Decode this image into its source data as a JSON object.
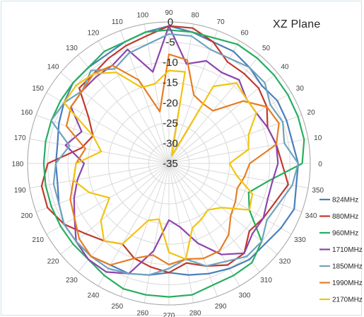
{
  "chart_data": {
    "type": "polar-line",
    "title": "XZ Plane",
    "angle_unit": "degrees",
    "angles": [
      0,
      10,
      20,
      30,
      40,
      50,
      60,
      70,
      80,
      90,
      100,
      110,
      120,
      130,
      140,
      150,
      160,
      170,
      180,
      190,
      200,
      210,
      220,
      230,
      240,
      250,
      260,
      270,
      280,
      290,
      300,
      310,
      320,
      330,
      340,
      350
    ],
    "angle_tick_labels": [
      "0",
      "10",
      "20",
      "30",
      "40",
      "50",
      "60",
      "70",
      "80",
      "90",
      "100",
      "110",
      "120",
      "130",
      "140",
      "150",
      "160",
      "170",
      "180",
      "190",
      "200",
      "210",
      "220",
      "230",
      "240",
      "250",
      "260",
      "270",
      "280",
      "290",
      "300",
      "310",
      "320",
      "330",
      "340",
      "350"
    ],
    "radial_range": [
      -35,
      0
    ],
    "radial_tick_labels": [
      "-35",
      "-30",
      "-25",
      "-20",
      "-15",
      "-10",
      "-5",
      "0"
    ],
    "grid": true,
    "legend_position": "right",
    "series": [
      {
        "name": "824MHz",
        "color": "#4a7ebb",
        "values": [
          -3,
          -4,
          -4,
          -4,
          -5,
          -4,
          -3,
          -3,
          -2,
          -1,
          -2,
          -3,
          -4,
          -4,
          -4,
          -5,
          -6,
          -7,
          -7,
          -7,
          -6,
          -5,
          -5,
          -5,
          -6,
          -6,
          -7,
          -8,
          -7,
          -6,
          -5,
          -4,
          -4,
          -3,
          -2,
          -3
        ]
      },
      {
        "name": "880MHz",
        "color": "#c0392b",
        "values": [
          -7,
          -8,
          -9,
          -7,
          -6,
          -6,
          -6,
          -3,
          -1,
          -1,
          -3,
          -4,
          -5,
          -6,
          -6,
          -12,
          -15,
          -13,
          -5,
          -3,
          -3,
          -5,
          -8,
          -10,
          -12,
          -10,
          -9,
          -8,
          -10,
          -8,
          -6,
          -6,
          -9,
          -8,
          -7,
          -5
        ]
      },
      {
        "name": "960MHz",
        "color": "#27ae60",
        "values": [
          -2,
          -1,
          -1,
          -1,
          -1,
          -1,
          -1,
          -2,
          -2,
          -2,
          -2,
          -3,
          -3,
          -4,
          -4,
          -4,
          -4,
          -4,
          -4,
          -4,
          -4,
          -4,
          -4,
          -4,
          -3,
          -2,
          -2,
          -2,
          -2,
          -3,
          -3,
          -3,
          -5,
          -12,
          -14,
          -10
        ]
      },
      {
        "name": "1710MHz",
        "color": "#8e44ad",
        "values": [
          -8,
          -8,
          -9,
          -10,
          -10,
          -8,
          -9,
          -8,
          -10,
          -1,
          -12,
          -5,
          -7,
          -7,
          -7,
          -7,
          -12,
          -9,
          -14,
          -12,
          -10,
          -8,
          -5,
          -4,
          -4,
          -6,
          -13,
          -21,
          -19,
          -14,
          -9,
          -6,
          -8,
          -8,
          -9,
          -9
        ]
      },
      {
        "name": "1850MHz",
        "color": "#6fa3bf",
        "values": [
          -3,
          -6,
          -5,
          -6,
          -4,
          -4,
          -5,
          -5,
          -3,
          -3,
          -5,
          -6,
          -8,
          -5,
          -7,
          -5,
          -4,
          -10,
          -7,
          -6,
          -6,
          -5,
          -5,
          -5,
          -5,
          -6,
          -7,
          -9,
          -11,
          -8,
          -7,
          -5,
          -5,
          -7,
          -6,
          -4
        ]
      },
      {
        "name": "1990MHz",
        "color": "#e67e22",
        "values": [
          -15,
          -8,
          -6,
          -7,
          -11,
          -18,
          -18,
          -17,
          -9,
          -8,
          -22,
          -13,
          -7,
          -6,
          -7,
          -7,
          -8,
          -14,
          -12,
          -11,
          -9,
          -8,
          -6,
          -5,
          -6,
          -10,
          -12,
          -10,
          -11,
          -10,
          -10,
          -12,
          -15,
          -16,
          -17,
          -16
        ]
      },
      {
        "name": "2170MHz",
        "color": "#f1c40f",
        "values": [
          -20,
          -15,
          -14,
          -10,
          -10,
          -9,
          -13,
          -33,
          -12,
          -12,
          -15,
          -15,
          -9,
          -6,
          -5,
          -5,
          -15,
          -18,
          -12,
          -11,
          -14,
          -18,
          -13,
          -10,
          -12,
          -20,
          -21,
          -13,
          -11,
          -18,
          -19,
          -20,
          -18,
          -12,
          -13,
          -18
        ]
      }
    ]
  }
}
